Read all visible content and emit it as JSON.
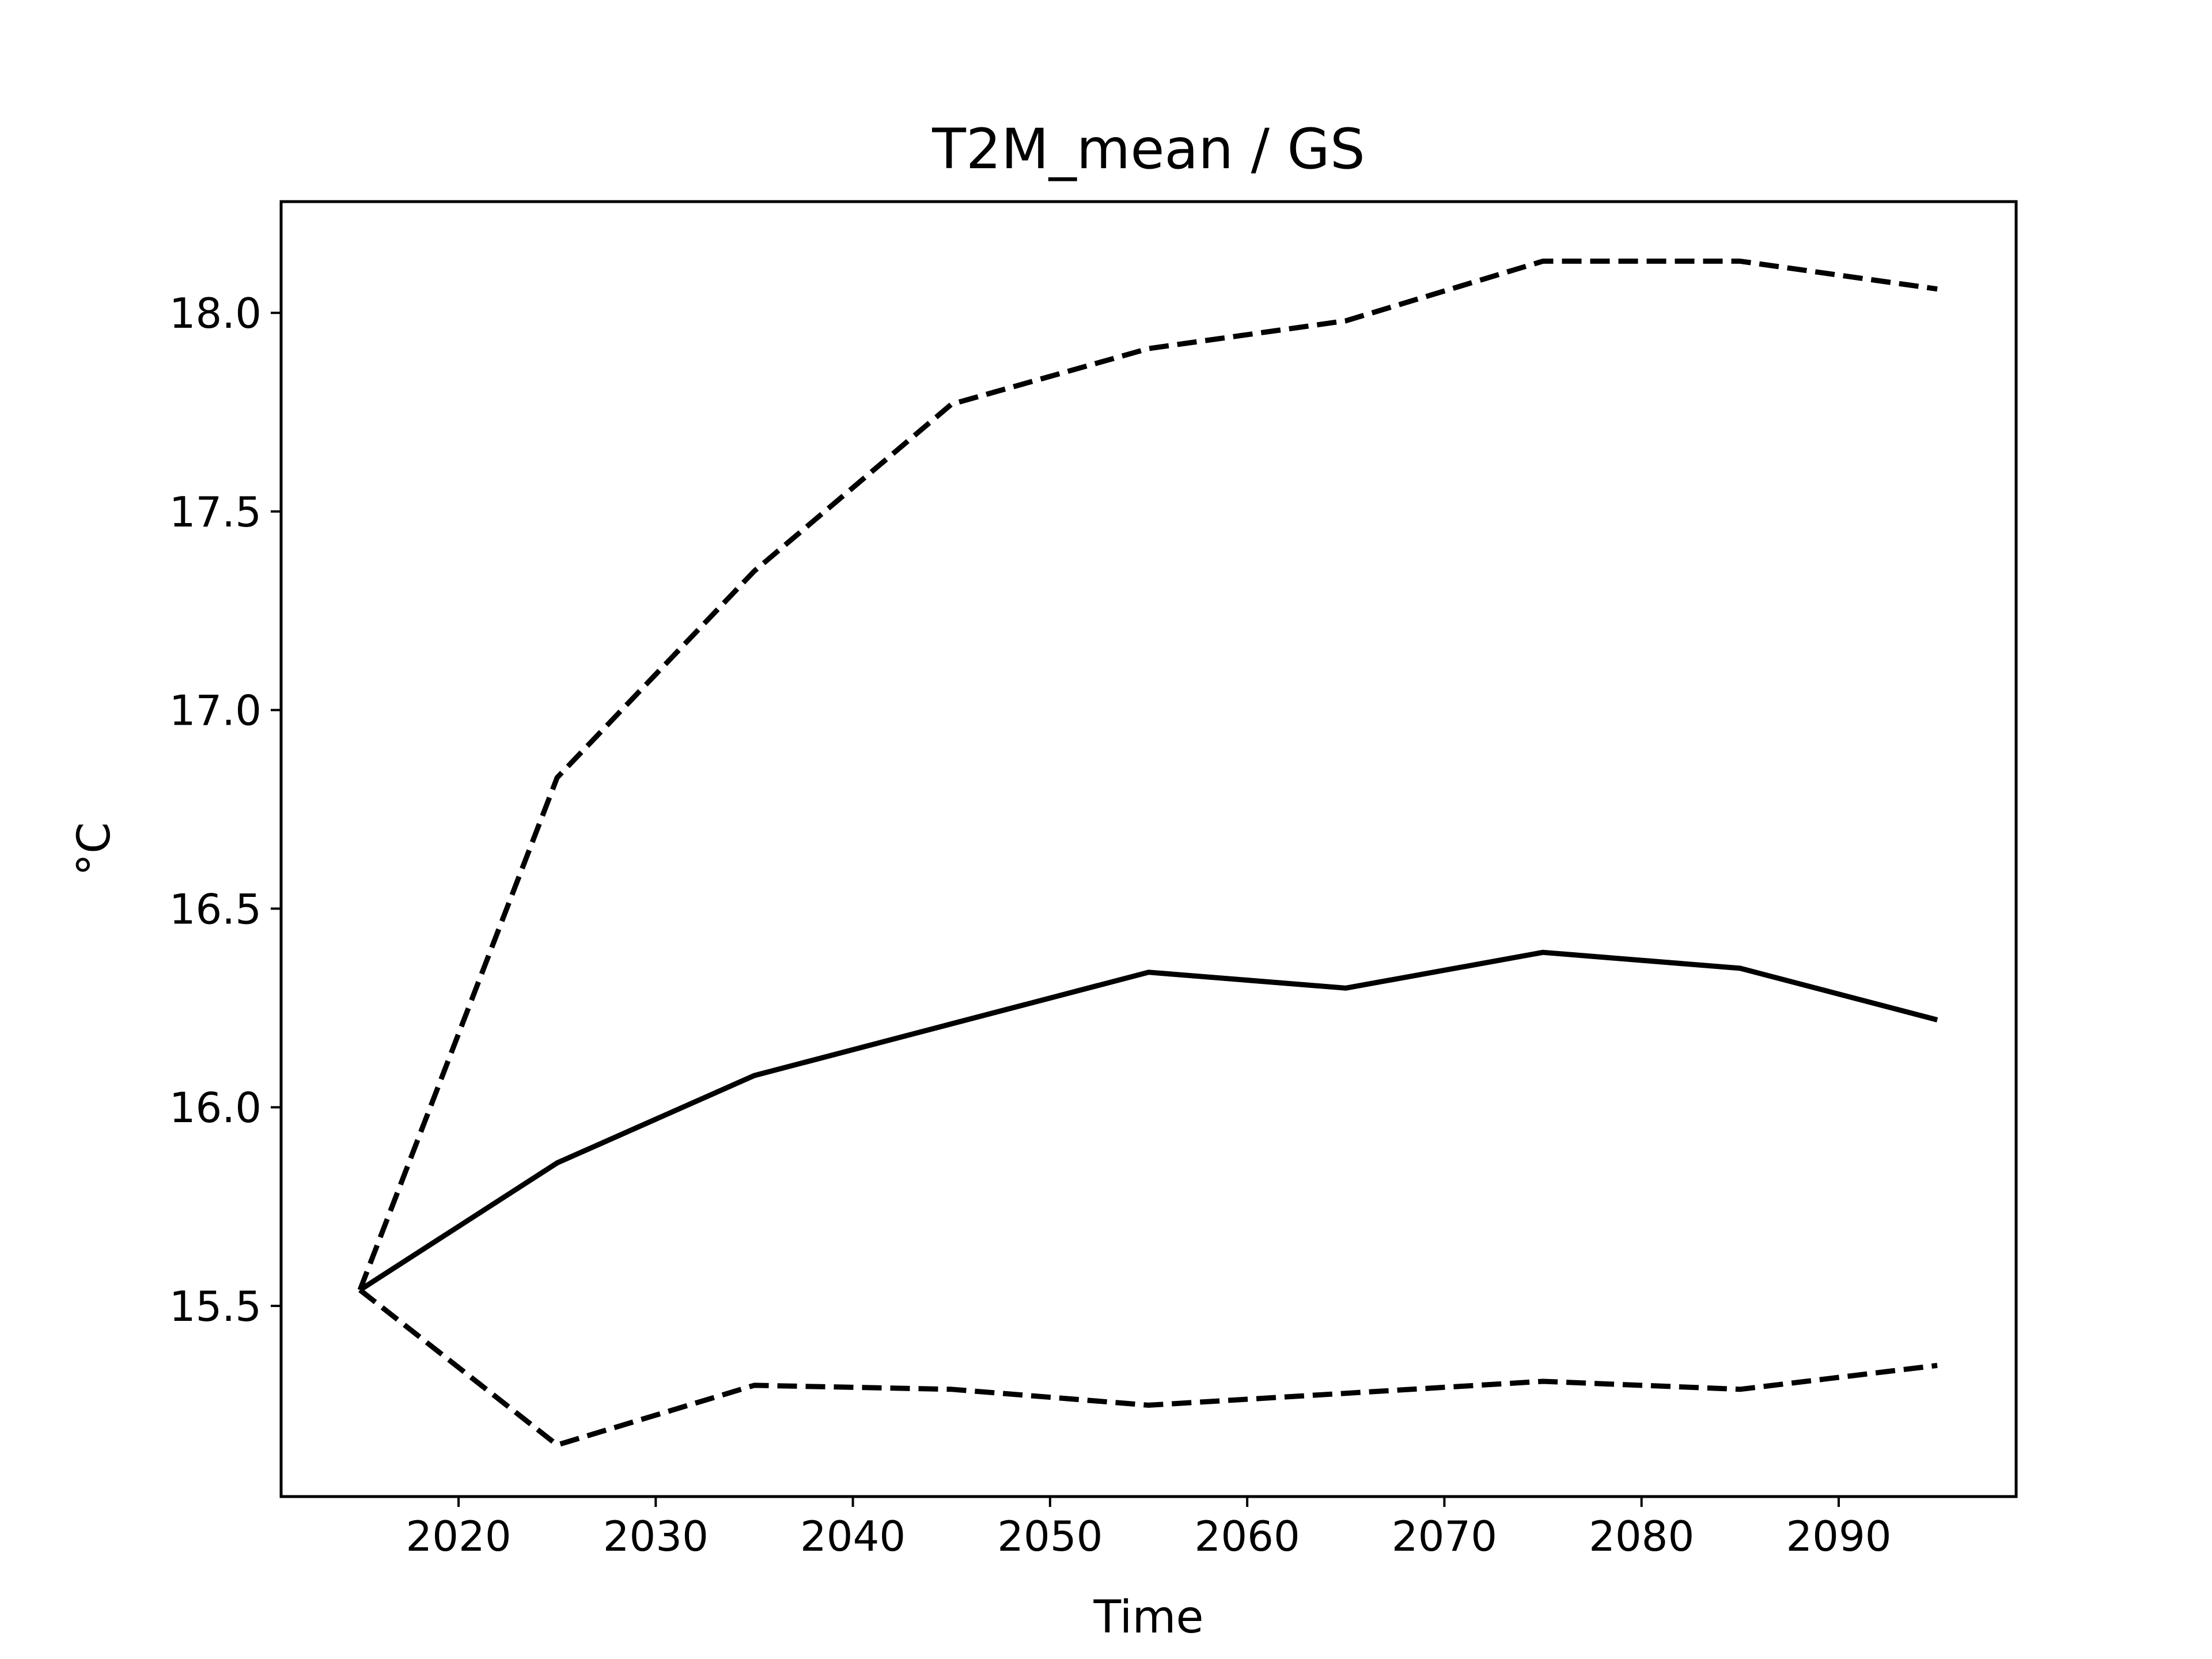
{
  "chart_data": {
    "type": "line",
    "title": "T2M_mean / GS",
    "xlabel": "Time",
    "ylabel": "°C",
    "xlim": [
      2011,
      2099
    ],
    "ylim": [
      15.02,
      18.28
    ],
    "xticks": [
      2020,
      2030,
      2040,
      2050,
      2060,
      2070,
      2080,
      2090
    ],
    "xtick_labels": [
      "2020",
      "2030",
      "2040",
      "2050",
      "2060",
      "2070",
      "2080",
      "2090"
    ],
    "yticks": [
      15.5,
      16.0,
      16.5,
      17.0,
      17.5,
      18.0
    ],
    "ytick_labels": [
      "15.5",
      "16.0",
      "16.5",
      "17.0",
      "17.5",
      "18.0"
    ],
    "grid": false,
    "legend": false,
    "x": [
      2015,
      2025,
      2035,
      2045,
      2055,
      2065,
      2075,
      2085,
      2095
    ],
    "series": [
      {
        "style": "dashed",
        "color": "#000000",
        "values": [
          15.54,
          16.83,
          17.35,
          17.77,
          17.91,
          17.98,
          18.13,
          18.13,
          18.06
        ]
      },
      {
        "style": "solid",
        "color": "#000000",
        "values": [
          15.54,
          15.86,
          16.08,
          16.21,
          16.34,
          16.3,
          16.39,
          16.35,
          16.22
        ]
      },
      {
        "style": "dashed",
        "color": "#000000",
        "values": [
          15.54,
          15.15,
          15.3,
          15.29,
          15.25,
          15.28,
          15.31,
          15.29,
          15.35
        ]
      }
    ]
  }
}
